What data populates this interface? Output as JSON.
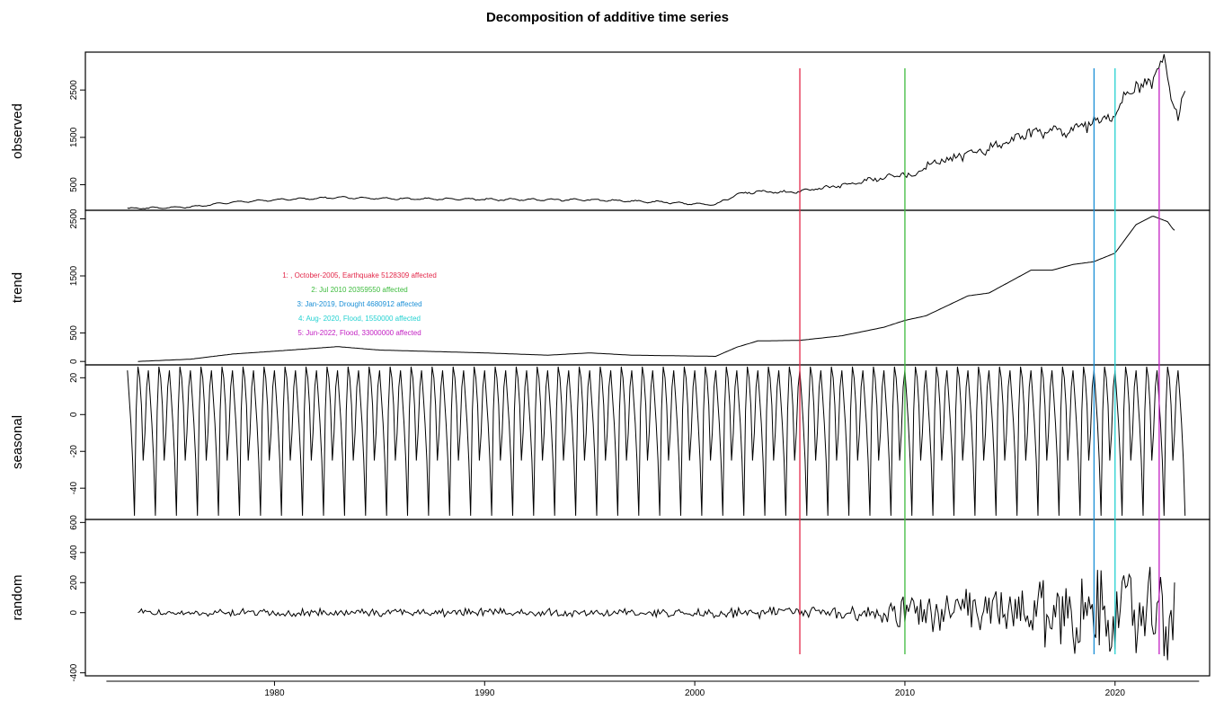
{
  "chart_data": {
    "type": "line",
    "title": "Decomposition of additive time series",
    "xlim": [
      1971,
      2024.5
    ],
    "x_ticks": [
      "1980",
      "1990",
      "2000",
      "2010",
      "2020"
    ],
    "panels": [
      {
        "name": "observed",
        "ylim": [
          -40,
          3300
        ],
        "y_ticks": [
          "500",
          "1500",
          "2500"
        ],
        "y_tick_values": [
          500,
          1500,
          2500
        ],
        "anchors": [
          [
            1973,
            0
          ],
          [
            1976,
            30
          ],
          [
            1978,
            130
          ],
          [
            1980,
            180
          ],
          [
            1983,
            230
          ],
          [
            1985,
            210
          ],
          [
            1990,
            190
          ],
          [
            1995,
            180
          ],
          [
            1998,
            140
          ],
          [
            2000,
            100
          ],
          [
            2001,
            80
          ],
          [
            2002,
            300
          ],
          [
            2003,
            360
          ],
          [
            2004,
            330
          ],
          [
            2005,
            360
          ],
          [
            2007,
            480
          ],
          [
            2009,
            650
          ],
          [
            2010,
            720
          ],
          [
            2010.3,
            660
          ],
          [
            2011,
            900
          ],
          [
            2013,
            1150
          ],
          [
            2015,
            1400
          ],
          [
            2016,
            1600
          ],
          [
            2018,
            1650
          ],
          [
            2019,
            1800
          ],
          [
            2020,
            1950
          ],
          [
            2020.7,
            2500
          ],
          [
            2021.5,
            2650
          ],
          [
            2022,
            2800
          ],
          [
            2022.3,
            3200
          ],
          [
            2022.6,
            2500
          ],
          [
            2023,
            1900
          ],
          [
            2023.3,
            2400
          ]
        ],
        "noise_amp": [
          [
            1973,
            8
          ],
          [
            2000,
            12
          ],
          [
            2005,
            20
          ],
          [
            2010,
            60
          ],
          [
            2016,
            100
          ],
          [
            2023.3,
            180
          ]
        ],
        "seasonal_amp": 40
      },
      {
        "name": "trend",
        "ylim": [
          -60,
          2650
        ],
        "y_ticks": [
          "0",
          "500",
          "1500",
          "2500"
        ],
        "y_tick_values": [
          0,
          500,
          1500,
          2500
        ],
        "anchors": [
          [
            1973.5,
            0
          ],
          [
            1976,
            40
          ],
          [
            1978,
            130
          ],
          [
            1980,
            180
          ],
          [
            1983,
            260
          ],
          [
            1985,
            200
          ],
          [
            1990,
            150
          ],
          [
            1993,
            110
          ],
          [
            1995,
            150
          ],
          [
            1997,
            110
          ],
          [
            1999,
            100
          ],
          [
            2001,
            90
          ],
          [
            2002,
            250
          ],
          [
            2003,
            360
          ],
          [
            2005,
            370
          ],
          [
            2007,
            450
          ],
          [
            2009,
            600
          ],
          [
            2010,
            720
          ],
          [
            2011,
            800
          ],
          [
            2013,
            1150
          ],
          [
            2014,
            1200
          ],
          [
            2015,
            1400
          ],
          [
            2016,
            1600
          ],
          [
            2017,
            1600
          ],
          [
            2018,
            1700
          ],
          [
            2019,
            1750
          ],
          [
            2020,
            1900
          ],
          [
            2021,
            2400
          ],
          [
            2021.8,
            2550
          ],
          [
            2022.5,
            2450
          ],
          [
            2022.8,
            2300
          ]
        ],
        "noise_amp": [
          [
            1973,
            0
          ],
          [
            2024,
            0
          ]
        ],
        "seasonal_amp": 0
      },
      {
        "name": "seasonal",
        "ylim": [
          -57,
          27
        ],
        "y_ticks": [
          "-40",
          "-20",
          "0",
          "20"
        ],
        "y_tick_values": [
          -40,
          -20,
          0,
          20
        ],
        "pattern": [
          24,
          10,
          -5,
          -25,
          -55,
          2,
          26,
          20,
          5,
          -25,
          -10,
          15
        ]
      },
      {
        "name": "random",
        "ylim": [
          -420,
          620
        ],
        "y_ticks": [
          "-400",
          "0",
          "200",
          "400",
          "600"
        ],
        "y_tick_values": [
          -400,
          0,
          200,
          400,
          600
        ],
        "anchors": [
          [
            1973.5,
            0
          ],
          [
            2022.8,
            0
          ]
        ],
        "noise_amp": [
          [
            1973,
            20
          ],
          [
            2000,
            30
          ],
          [
            2008,
            50
          ],
          [
            2010,
            110
          ],
          [
            2015,
            180
          ],
          [
            2018,
            260
          ],
          [
            2022.8,
            300
          ]
        ]
      }
    ],
    "events": [
      {
        "x": 2005.0,
        "color": "#e3284a",
        "label": "1: , October-2005,  Earthquake   5128309  affected"
      },
      {
        "x": 2010.0,
        "color": "#3dbb3d",
        "label": "2: Jul 2010 20359550  affected"
      },
      {
        "x": 2019.0,
        "color": "#1a8fd6",
        "label": "3: Jan-2019,  Drought   4680912  affected"
      },
      {
        "x": 2020.0,
        "color": "#25d1d1",
        "label": "4:  Aug- 2020, Flood, 1550000 affected"
      },
      {
        "x": 2022.1,
        "color": "#c21ec2",
        "label": "5: Jun-2022, Flood, 33000000 affected"
      }
    ]
  }
}
